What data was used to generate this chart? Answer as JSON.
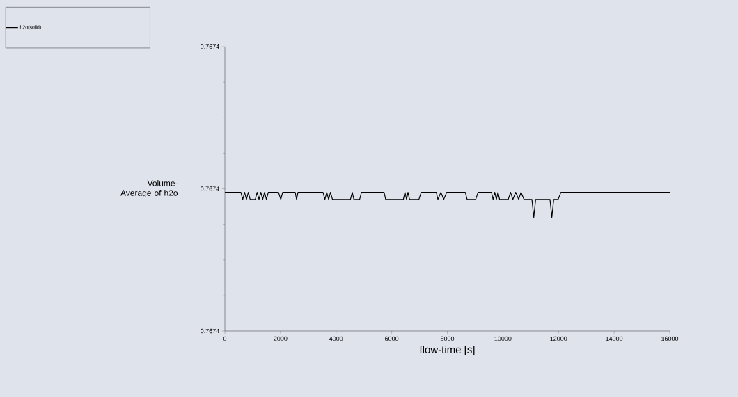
{
  "chart_data": {
    "type": "line",
    "xlabel": "flow-time [s]",
    "ylabel": "Volume-Average of h2o",
    "legend": "top left",
    "marker": "none",
    "line_style": "solid",
    "grid": false,
    "xlim": [
      0,
      16000
    ],
    "xticks": [
      0,
      2000,
      4000,
      6000,
      8000,
      10000,
      12000,
      14000,
      16000
    ],
    "ylim": [
      0.76736,
      0.76744
    ],
    "yticks": [
      {
        "value": 0.76736,
        "label": "0.7674"
      },
      {
        "value": 0.7674,
        "label": "0.7674"
      },
      {
        "value": 0.76744,
        "label": "0.7674"
      }
    ],
    "x": [
      0,
      576,
      643,
      709,
      776,
      843,
      910,
      1093,
      1160,
      1227,
      1294,
      1360,
      1427,
      1494,
      1561,
      1928,
      2011,
      2078,
      2529,
      2579,
      2629,
      3530,
      3597,
      3664,
      3731,
      3798,
      3870,
      4515,
      4582,
      4640,
      4846,
      4913,
      5726,
      5784,
      6418,
      6477,
      6535,
      6585,
      6643,
      6977,
      7061,
      7604,
      7662,
      7770,
      7870,
      7980,
      8646,
      8713,
      9021,
      9105,
      9588,
      9647,
      9706,
      9764,
      9822,
      9881,
      10191,
      10274,
      10358,
      10458,
      10566,
      10650,
      10758,
      11043,
      11110,
      11177,
      11693,
      11760,
      11827,
      11985,
      12086,
      16000
    ],
    "series": [
      {
        "name": "h2o(solid)",
        "color": "#000000",
        "values": [
          0.767399,
          0.767399,
          0.767397,
          0.767399,
          0.767397,
          0.767399,
          0.767397,
          0.767397,
          0.767399,
          0.767397,
          0.767399,
          0.767397,
          0.767399,
          0.767397,
          0.767399,
          0.767399,
          0.767397,
          0.767399,
          0.767399,
          0.767397,
          0.767399,
          0.767399,
          0.767397,
          0.767399,
          0.767397,
          0.767399,
          0.767397,
          0.767397,
          0.767399,
          0.767397,
          0.767397,
          0.767399,
          0.767399,
          0.767397,
          0.767397,
          0.767399,
          0.767397,
          0.767399,
          0.767397,
          0.767397,
          0.767399,
          0.767399,
          0.767397,
          0.767399,
          0.767397,
          0.767399,
          0.767399,
          0.767397,
          0.767397,
          0.767399,
          0.767399,
          0.767397,
          0.767399,
          0.767397,
          0.767399,
          0.767397,
          0.767397,
          0.767399,
          0.767397,
          0.767399,
          0.767397,
          0.767399,
          0.767397,
          0.767397,
          0.767392,
          0.767397,
          0.767397,
          0.767392,
          0.767397,
          0.767397,
          0.767399,
          0.767399
        ]
      }
    ]
  }
}
